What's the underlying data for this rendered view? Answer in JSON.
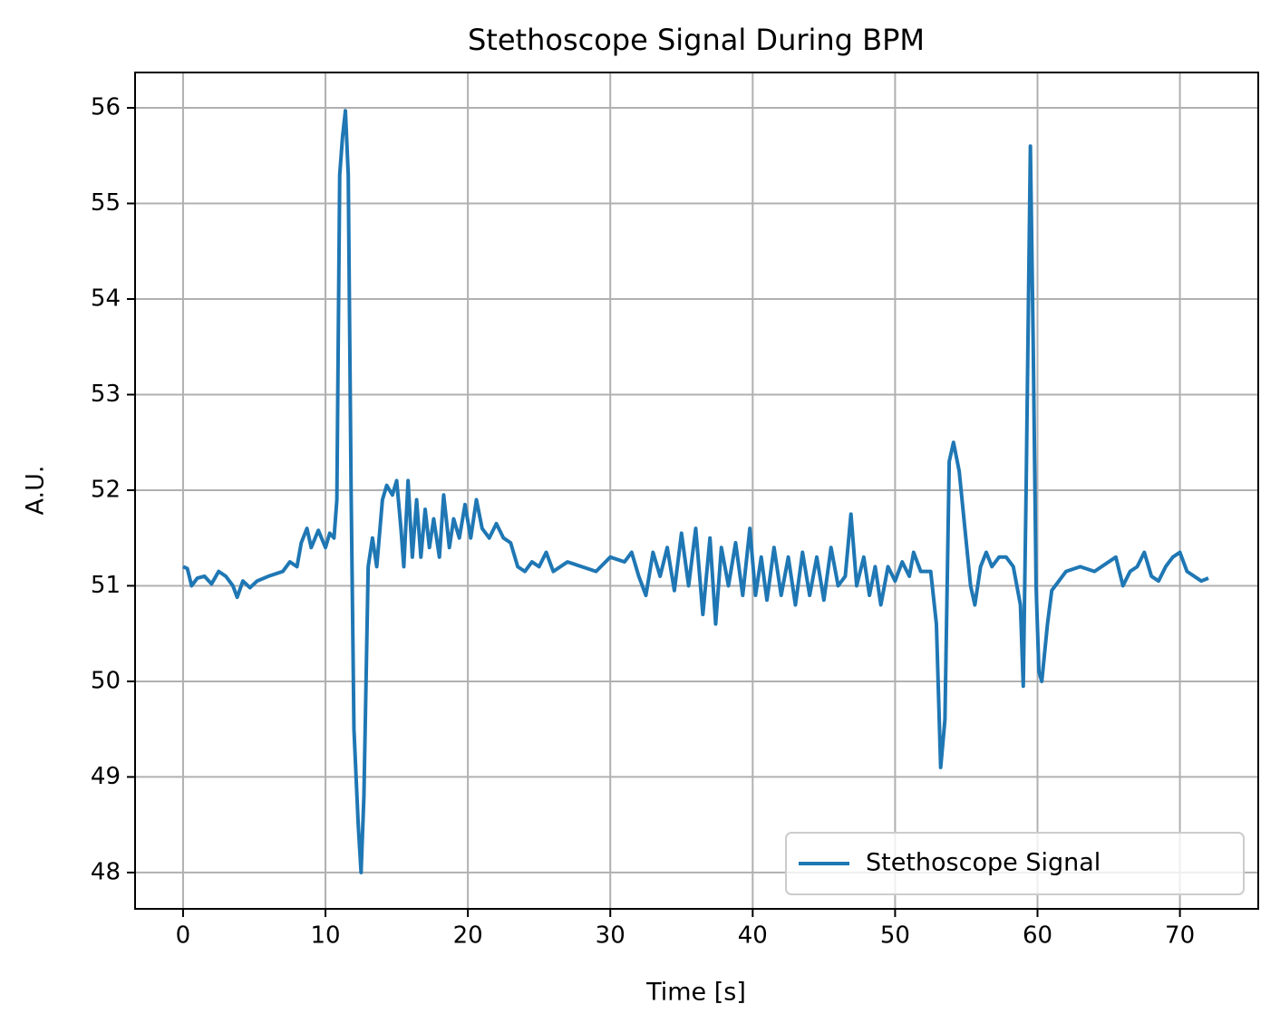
{
  "chart_data": {
    "type": "line",
    "title": "Stethoscope Signal During BPM",
    "x_label": "Time [s]",
    "y_label": "A.U.",
    "x": [
      0,
      0.3,
      0.6,
      1,
      1.5,
      2,
      2.5,
      3,
      3.5,
      3.8,
      4.2,
      4.7,
      5.2,
      6,
      7,
      7.5,
      8,
      8.3,
      8.7,
      9,
      9.5,
      10,
      10.3,
      10.6,
      10.8,
      11,
      11.2,
      11.4,
      11.6,
      11.8,
      12,
      12.3,
      12.5,
      12.7,
      13,
      13.3,
      13.6,
      14,
      14.3,
      14.7,
      15,
      15.3,
      15.5,
      15.8,
      16.1,
      16.4,
      16.7,
      17,
      17.3,
      17.6,
      18,
      18.3,
      18.7,
      19,
      19.4,
      19.8,
      20.2,
      20.6,
      21,
      21.5,
      22,
      22.5,
      23,
      23.5,
      24,
      24.5,
      25,
      25.5,
      26,
      27,
      28,
      29,
      30,
      31,
      31.5,
      32,
      32.5,
      33,
      33.5,
      34,
      34.5,
      35,
      35.5,
      36,
      36.5,
      37,
      37.4,
      37.8,
      38.3,
      38.8,
      39.3,
      39.8,
      40.2,
      40.6,
      41,
      41.5,
      42,
      42.5,
      43,
      43.5,
      44,
      44.5,
      45,
      45.5,
      46,
      46.5,
      46.9,
      47.3,
      47.8,
      48.2,
      48.6,
      49,
      49.5,
      50,
      50.5,
      51,
      51.3,
      51.8,
      52.5,
      52.9,
      53.2,
      53.5,
      53.8,
      54.1,
      54.5,
      54.9,
      55.3,
      55.6,
      56,
      56.4,
      56.8,
      57.3,
      57.8,
      58.3,
      58.8,
      59,
      59.2,
      59.5,
      59.7,
      59.9,
      60.1,
      60.3,
      60.7,
      61,
      61.5,
      62,
      63,
      64,
      65,
      65.5,
      66,
      66.5,
      67,
      67.5,
      68,
      68.5,
      69,
      69.5,
      70,
      70.5,
      71,
      71.5,
      72
    ],
    "series": [
      {
        "name": "Stethoscope Signal",
        "color": "#1f77b4",
        "values": [
          51.2,
          51.18,
          51.0,
          51.08,
          51.1,
          51.02,
          51.15,
          51.1,
          51.0,
          50.88,
          51.05,
          50.98,
          51.05,
          51.1,
          51.15,
          51.25,
          51.2,
          51.45,
          51.6,
          51.4,
          51.58,
          51.4,
          51.55,
          51.5,
          51.9,
          55.3,
          55.7,
          55.97,
          55.3,
          52,
          49.5,
          48.5,
          48.0,
          48.8,
          51.2,
          51.5,
          51.2,
          51.9,
          52.05,
          51.95,
          52.1,
          51.6,
          51.2,
          52.1,
          51.3,
          51.9,
          51.3,
          51.8,
          51.4,
          51.7,
          51.3,
          51.95,
          51.4,
          51.7,
          51.5,
          51.85,
          51.5,
          51.9,
          51.6,
          51.5,
          51.65,
          51.5,
          51.45,
          51.2,
          51.15,
          51.25,
          51.2,
          51.35,
          51.15,
          51.25,
          51.2,
          51.15,
          51.3,
          51.25,
          51.35,
          51.1,
          50.9,
          51.35,
          51.1,
          51.4,
          50.95,
          51.55,
          51.0,
          51.6,
          50.7,
          51.5,
          50.6,
          51.4,
          51.0,
          51.45,
          50.9,
          51.6,
          50.9,
          51.3,
          50.85,
          51.4,
          50.9,
          51.3,
          50.8,
          51.35,
          50.9,
          51.3,
          50.85,
          51.4,
          51.0,
          51.1,
          51.75,
          51.0,
          51.3,
          50.9,
          51.2,
          50.8,
          51.2,
          51.05,
          51.25,
          51.1,
          51.35,
          51.15,
          51.15,
          50.6,
          49.1,
          49.6,
          52.3,
          52.5,
          52.2,
          51.6,
          51.0,
          50.8,
          51.2,
          51.35,
          51.2,
          51.3,
          51.3,
          51.2,
          50.8,
          49.95,
          52.0,
          55.6,
          53.5,
          51.0,
          50.1,
          50.0,
          50.6,
          50.95,
          51.05,
          51.15,
          51.2,
          51.15,
          51.25,
          51.3,
          51.0,
          51.15,
          51.2,
          51.35,
          51.1,
          51.05,
          51.2,
          51.3,
          51.35,
          51.15,
          51.1,
          51.05,
          51.08
        ]
      }
    ],
    "xlim": [
      -3.37,
      75.5
    ],
    "ylim": [
      47.62,
      56.37
    ],
    "xticks": [
      0,
      10,
      20,
      30,
      40,
      50,
      60,
      70
    ],
    "yticks": [
      48,
      49,
      50,
      51,
      52,
      53,
      54,
      55,
      56
    ],
    "grid": true,
    "legend": "lower right"
  }
}
